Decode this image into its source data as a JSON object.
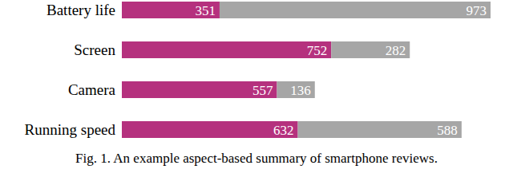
{
  "chart_data": {
    "type": "bar",
    "title": "Fig. 1. An example aspect-based summary of smartphone reviews.",
    "orientation": "horizontal",
    "stacked": true,
    "data_labels": true,
    "tick_labels": "y",
    "categories": [
      "Battery life",
      "Screen",
      "Camera",
      "Running speed"
    ],
    "series": [
      {
        "color": "#b5317e",
        "values": [
          351,
          752,
          557,
          632
        ]
      },
      {
        "color": "#a6a6a6",
        "values": [
          973,
          282,
          136,
          588
        ]
      }
    ],
    "xlim": [
      0,
      1324
    ]
  }
}
